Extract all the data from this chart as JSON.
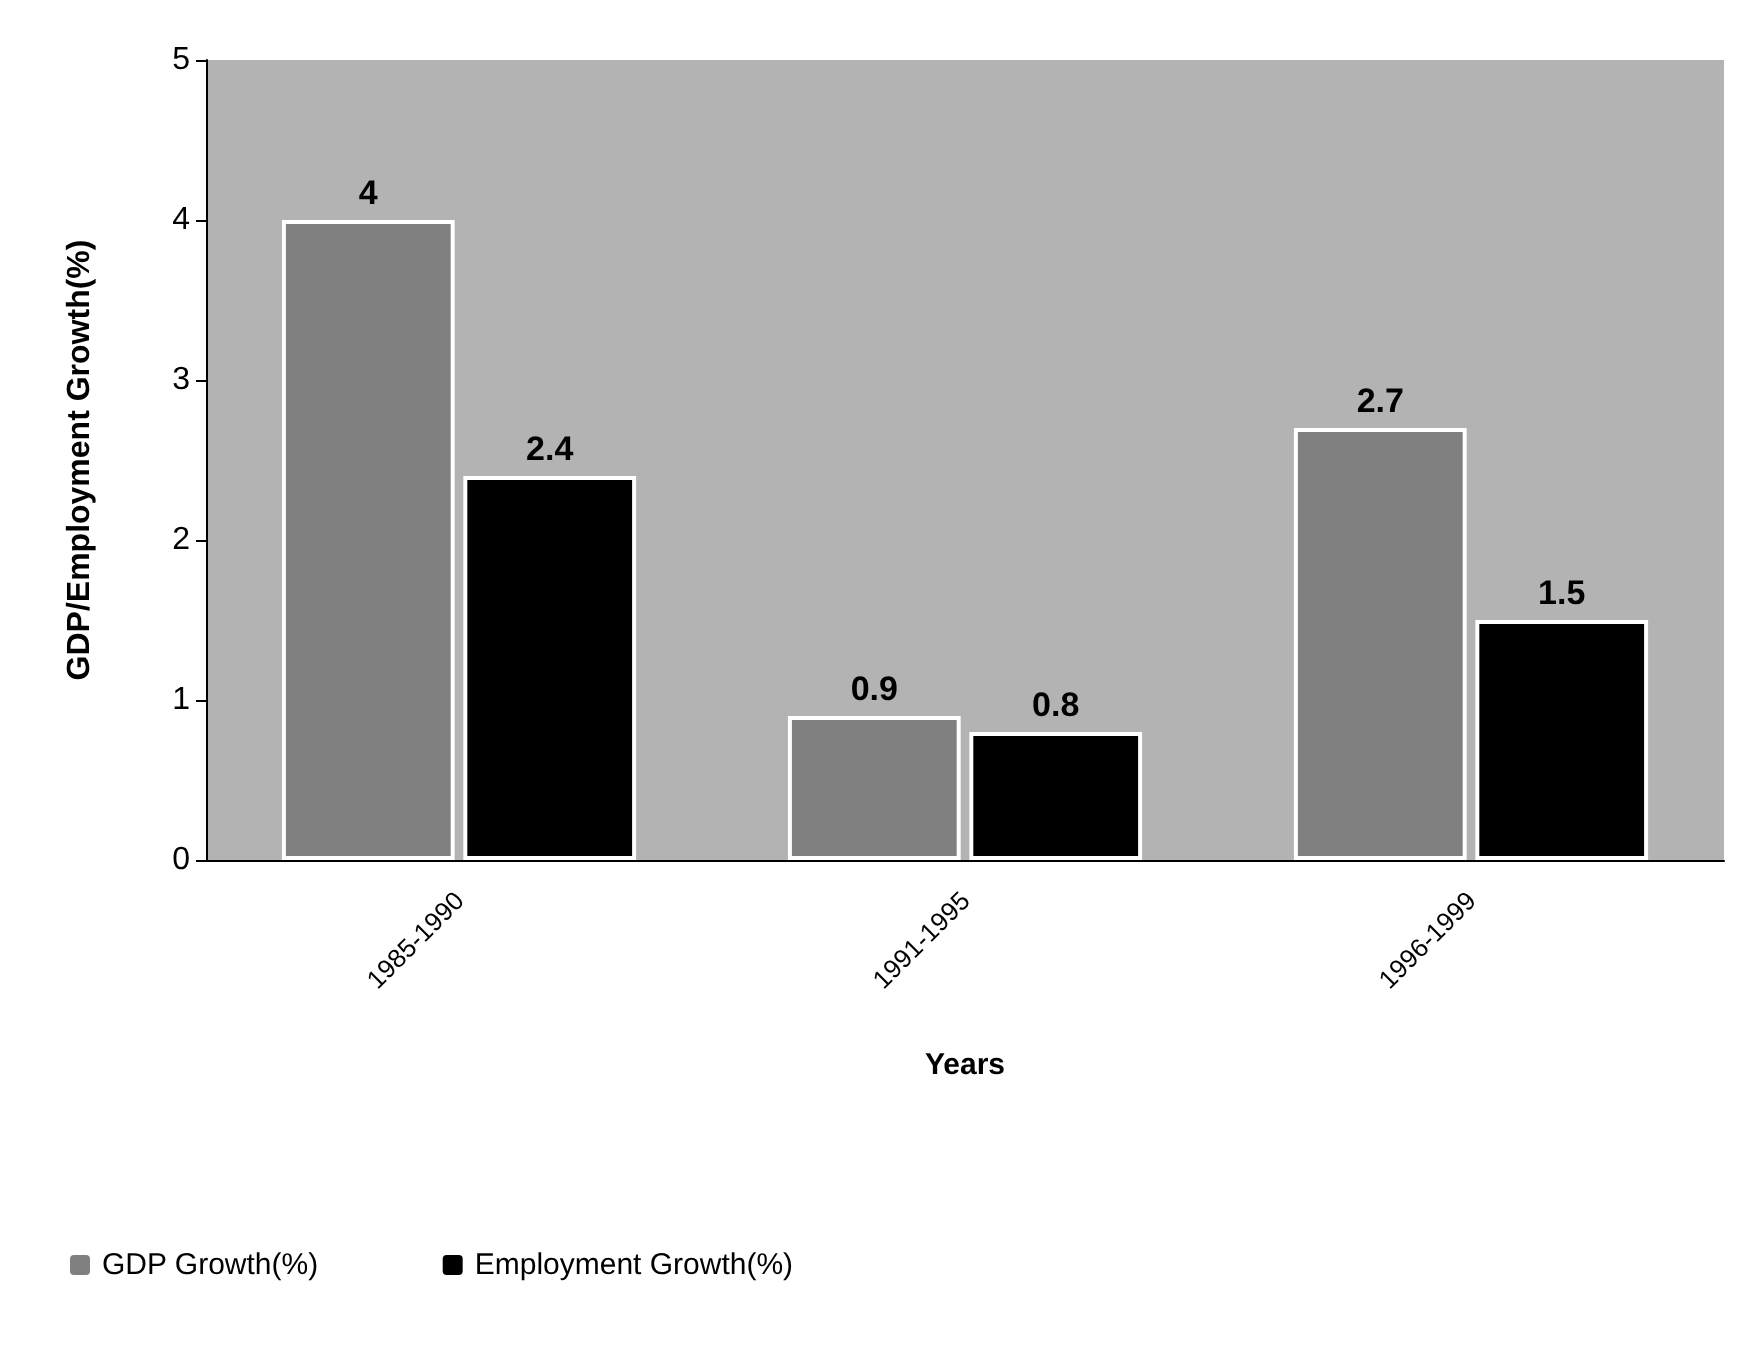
{
  "chart_data": {
    "type": "bar",
    "categories": [
      "1985-1990",
      "1991-1995",
      "1996-1999"
    ],
    "series": [
      {
        "name": "GDP Growth(%)",
        "color": "#808080",
        "values": [
          4,
          0.9,
          2.7
        ]
      },
      {
        "name": "Employment Growth(%)",
        "color": "#000000",
        "values": [
          2.4,
          0.8,
          1.5
        ]
      }
    ],
    "xlabel": "Years",
    "ylabel": "GDP/Employment Growth(%)",
    "ylim": [
      0,
      5
    ],
    "yticks": [
      0,
      1,
      2,
      3,
      4,
      5
    ],
    "grid": false,
    "legend": "bottom left",
    "data_labels": true
  }
}
